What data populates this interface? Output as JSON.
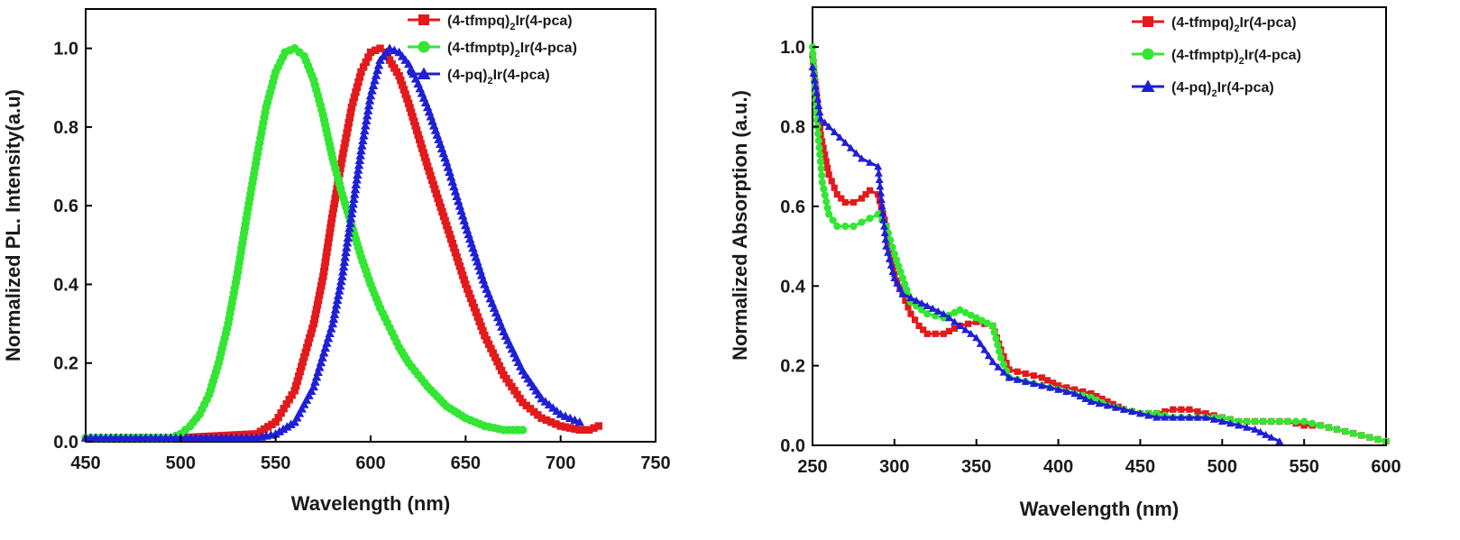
{
  "chart_data": [
    {
      "type": "scatter",
      "xlabel": "Wavelength (nm)",
      "ylabel": "Normalized PL. Intensity(a.u)",
      "xlim": [
        450,
        750
      ],
      "ylim": [
        0,
        1.1
      ],
      "xticks": [
        450,
        500,
        550,
        600,
        650,
        700,
        750
      ],
      "yticks": [
        0.0,
        0.2,
        0.4,
        0.6,
        0.8,
        1.0
      ],
      "legend_position": "top-right",
      "grid": false,
      "series": [
        {
          "name": [
            "(4-tfmpq)",
            "2",
            "Ir(4-pca)"
          ],
          "color": "#e31a1c",
          "marker": "square",
          "x": [
            500,
            540,
            550,
            560,
            570,
            575,
            580,
            585,
            590,
            595,
            600,
            605,
            608,
            610,
            615,
            620,
            625,
            630,
            640,
            650,
            660,
            670,
            680,
            690,
            700,
            710,
            715,
            720
          ],
          "y": [
            0.01,
            0.02,
            0.05,
            0.13,
            0.3,
            0.42,
            0.58,
            0.72,
            0.85,
            0.94,
            0.99,
            1.0,
            0.99,
            0.97,
            0.93,
            0.86,
            0.78,
            0.7,
            0.55,
            0.4,
            0.27,
            0.17,
            0.1,
            0.06,
            0.04,
            0.03,
            0.03,
            0.04
          ]
        },
        {
          "name": [
            "(4-tfmptp)",
            "2",
            "Ir(4-pca)"
          ],
          "color": "#33e633",
          "marker": "circle",
          "x": [
            450,
            480,
            495,
            500,
            505,
            510,
            515,
            520,
            525,
            530,
            535,
            540,
            545,
            550,
            555,
            560,
            565,
            570,
            575,
            580,
            585,
            590,
            595,
            600,
            605,
            610,
            615,
            620,
            630,
            640,
            650,
            660,
            670,
            680
          ],
          "y": [
            0.01,
            0.01,
            0.01,
            0.02,
            0.04,
            0.07,
            0.12,
            0.2,
            0.3,
            0.43,
            0.58,
            0.72,
            0.85,
            0.94,
            0.99,
            1.0,
            0.98,
            0.92,
            0.83,
            0.72,
            0.63,
            0.55,
            0.47,
            0.4,
            0.34,
            0.29,
            0.24,
            0.2,
            0.14,
            0.09,
            0.06,
            0.04,
            0.03,
            0.03
          ]
        },
        {
          "name": [
            "(4-pq)",
            "2",
            "Ir(4-pca)"
          ],
          "color": "#1f1fd6",
          "marker": "triangle",
          "x": [
            450,
            500,
            540,
            550,
            560,
            570,
            580,
            585,
            590,
            595,
            600,
            605,
            610,
            615,
            620,
            625,
            630,
            640,
            650,
            660,
            670,
            680,
            690,
            700,
            710
          ],
          "y": [
            0.01,
            0.01,
            0.01,
            0.02,
            0.05,
            0.14,
            0.3,
            0.42,
            0.58,
            0.74,
            0.88,
            0.97,
            1.0,
            0.99,
            0.96,
            0.91,
            0.85,
            0.71,
            0.55,
            0.4,
            0.28,
            0.18,
            0.11,
            0.07,
            0.05
          ]
        }
      ]
    },
    {
      "type": "line",
      "xlabel": "Wavelength (nm)",
      "ylabel": "Normalized Absorption (a.u.)",
      "xlim": [
        250,
        600
      ],
      "ylim": [
        0,
        1.1
      ],
      "xticks": [
        250,
        300,
        350,
        400,
        450,
        500,
        550,
        600
      ],
      "yticks": [
        0.0,
        0.2,
        0.4,
        0.6,
        0.8,
        1.0
      ],
      "legend_position": "top-right",
      "grid": false,
      "series": [
        {
          "name": [
            "(4-tfmpq)",
            "2",
            "Ir(4-pca)"
          ],
          "color": "#e31a1c",
          "marker": "square",
          "x": [
            250,
            255,
            260,
            265,
            270,
            275,
            280,
            285,
            290,
            295,
            300,
            305,
            310,
            315,
            320,
            330,
            340,
            350,
            360,
            365,
            370,
            380,
            390,
            400,
            410,
            420,
            430,
            440,
            450,
            460,
            470,
            480,
            490,
            500,
            510,
            520,
            530,
            540,
            550,
            560,
            570,
            580,
            590,
            600
          ],
          "y": [
            0.98,
            0.78,
            0.68,
            0.63,
            0.61,
            0.61,
            0.62,
            0.64,
            0.63,
            0.55,
            0.43,
            0.38,
            0.33,
            0.3,
            0.28,
            0.28,
            0.3,
            0.31,
            0.3,
            0.24,
            0.19,
            0.18,
            0.17,
            0.15,
            0.14,
            0.13,
            0.11,
            0.09,
            0.08,
            0.08,
            0.09,
            0.09,
            0.08,
            0.07,
            0.06,
            0.06,
            0.06,
            0.06,
            0.05,
            0.05,
            0.04,
            0.03,
            0.02,
            0.01
          ]
        },
        {
          "name": [
            "(4-tfmptp)",
            "2",
            "Ir(4-pca)"
          ],
          "color": "#33e633",
          "marker": "circle",
          "x": [
            250,
            253,
            256,
            260,
            265,
            270,
            275,
            280,
            285,
            290,
            295,
            300,
            305,
            310,
            320,
            330,
            340,
            350,
            360,
            365,
            370,
            380,
            390,
            400,
            410,
            420,
            430,
            440,
            450,
            460,
            470,
            480,
            490,
            500,
            510,
            520,
            530,
            540,
            550,
            560,
            570,
            580,
            590,
            600
          ],
          "y": [
            1.0,
            0.8,
            0.66,
            0.58,
            0.55,
            0.55,
            0.55,
            0.56,
            0.57,
            0.58,
            0.55,
            0.48,
            0.42,
            0.36,
            0.33,
            0.32,
            0.34,
            0.32,
            0.3,
            0.22,
            0.17,
            0.16,
            0.15,
            0.14,
            0.13,
            0.12,
            0.1,
            0.09,
            0.08,
            0.08,
            0.07,
            0.07,
            0.07,
            0.07,
            0.06,
            0.06,
            0.06,
            0.06,
            0.06,
            0.05,
            0.04,
            0.03,
            0.02,
            0.01
          ]
        },
        {
          "name": [
            "(4-pq)",
            "2",
            "Ir(4-pca)"
          ],
          "color": "#1f1fd6",
          "marker": "triangle",
          "x": [
            250,
            255,
            260,
            270,
            280,
            285,
            290,
            295,
            300,
            305,
            310,
            320,
            330,
            340,
            350,
            360,
            370,
            380,
            390,
            400,
            410,
            420,
            430,
            440,
            450,
            460,
            470,
            480,
            490,
            500,
            510,
            520,
            530,
            535
          ],
          "y": [
            0.95,
            0.82,
            0.8,
            0.76,
            0.72,
            0.71,
            0.7,
            0.5,
            0.42,
            0.38,
            0.37,
            0.35,
            0.33,
            0.3,
            0.27,
            0.21,
            0.17,
            0.16,
            0.15,
            0.14,
            0.13,
            0.11,
            0.1,
            0.09,
            0.08,
            0.07,
            0.07,
            0.07,
            0.07,
            0.06,
            0.05,
            0.04,
            0.02,
            0.01
          ]
        }
      ]
    }
  ]
}
